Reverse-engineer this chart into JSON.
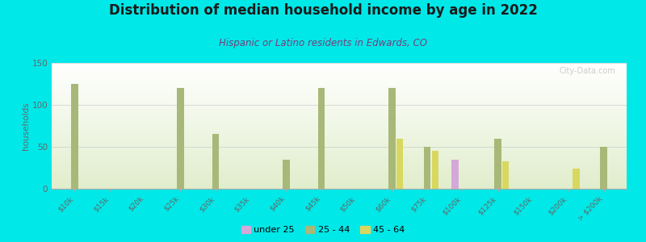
{
  "title": "Distribution of median household income by age in 2022",
  "subtitle": "Hispanic or Latino residents in Edwards, CO",
  "ylabel": "households",
  "background_color": "#00e8e8",
  "categories": [
    "$10k",
    "$15k",
    "$20k",
    "$25k",
    "$30k",
    "$35k",
    "$40k",
    "$45k",
    "$50k",
    "$60k",
    "$75k",
    "$100k",
    "$125k",
    "$150k",
    "$200k",
    "> $200k"
  ],
  "series": {
    "under 25": {
      "color": "#d4a8d8",
      "values": [
        0,
        0,
        0,
        0,
        0,
        0,
        0,
        0,
        0,
        0,
        0,
        35,
        0,
        0,
        0,
        0
      ]
    },
    "25 - 44": {
      "color": "#a8b878",
      "values": [
        125,
        0,
        0,
        120,
        65,
        0,
        35,
        120,
        0,
        120,
        50,
        0,
        60,
        0,
        0,
        50
      ]
    },
    "45 - 64": {
      "color": "#d8d860",
      "values": [
        0,
        0,
        0,
        0,
        0,
        0,
        0,
        0,
        0,
        60,
        45,
        0,
        33,
        0,
        24,
        0
      ]
    }
  },
  "ylim": [
    0,
    150
  ],
  "yticks": [
    0,
    50,
    100,
    150
  ],
  "watermark": "City-Data.com",
  "bar_width": 0.22
}
